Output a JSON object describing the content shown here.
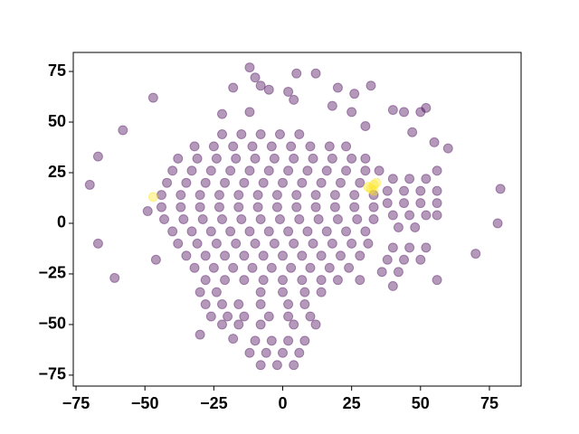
{
  "chart_data": {
    "type": "scatter",
    "xlim": [
      -76,
      86.5
    ],
    "ylim": [
      -80.4,
      84.4
    ],
    "xticks": [
      {
        "value": -75,
        "label": "−75"
      },
      {
        "value": -50,
        "label": "−50"
      },
      {
        "value": -25,
        "label": "−25"
      },
      0,
      25,
      50,
      75
    ],
    "yticks": [
      {
        "value": -75,
        "label": "−75"
      },
      {
        "value": -50,
        "label": "−50"
      },
      {
        "value": -25,
        "label": "−25"
      },
      0,
      25,
      50,
      75
    ],
    "grid": false,
    "alpha": 0.4,
    "series": [
      {
        "color": "#440154",
        "x": [
          -22,
          -15,
          -8,
          -1,
          6,
          -32,
          -25,
          -18,
          -11,
          -4,
          3,
          10,
          17,
          23,
          -38,
          -31,
          -24,
          -17,
          -10,
          -3,
          4,
          11,
          18,
          25,
          30,
          -40,
          -33,
          -26,
          -19,
          -12,
          -5,
          2,
          9,
          16,
          23,
          30,
          35,
          -42,
          -35,
          -28,
          -21,
          -14,
          -7,
          0,
          7,
          14,
          21,
          28,
          -44,
          -37,
          -30,
          -23,
          -16,
          -9,
          -2,
          5,
          12,
          19,
          26,
          33,
          -44,
          -37,
          -30,
          -23,
          -16,
          -9,
          -2,
          5,
          12,
          19,
          26,
          33,
          -43,
          -36,
          -29,
          -22,
          -15,
          -8,
          -1,
          6,
          13,
          20,
          27,
          33,
          -40,
          -33,
          -26,
          -19,
          -12,
          -5,
          2,
          9,
          16,
          23,
          30,
          -38,
          -31,
          -24,
          -17,
          -10,
          -3,
          4,
          11,
          18,
          25,
          31,
          -35,
          -28,
          -21,
          -14,
          -7,
          0,
          7,
          14,
          21,
          28,
          -32,
          -25,
          -18,
          -11,
          -4,
          3,
          10,
          17,
          24,
          -28,
          -21,
          -14,
          -7,
          0,
          7,
          14,
          20,
          28,
          -30,
          -24,
          -8,
          0,
          8,
          14,
          -28,
          -22,
          -16,
          -8,
          2,
          8,
          -26,
          -20,
          -14,
          -5,
          2,
          10,
          -22,
          -16,
          -8,
          4,
          12,
          -10,
          -4,
          2,
          8,
          -12,
          -6,
          0,
          6,
          -8,
          -2,
          4,
          40,
          46,
          52,
          38,
          44,
          50,
          56,
          38,
          44,
          50,
          56,
          40,
          46,
          52,
          56,
          42,
          48,
          40,
          46,
          52,
          38,
          44,
          50,
          36,
          42,
          -70,
          -67,
          -67,
          -61,
          -58,
          -47,
          -12,
          -10,
          -18,
          -8,
          -5,
          2,
          4,
          12,
          5,
          20,
          26,
          32,
          40,
          44,
          50,
          52,
          47,
          55,
          60,
          56,
          70,
          78,
          79,
          56,
          40,
          30,
          -49,
          -46,
          -22,
          -12,
          25,
          18,
          -30,
          -18
        ],
        "values": [
          44,
          44,
          44,
          44,
          44,
          38,
          38,
          38,
          38,
          38,
          38,
          38,
          38,
          38,
          32,
          32,
          32,
          32,
          32,
          32,
          32,
          32,
          32,
          32,
          32,
          26,
          26,
          26,
          26,
          26,
          26,
          26,
          26,
          26,
          26,
          26,
          26,
          20,
          20,
          20,
          20,
          20,
          20,
          20,
          20,
          20,
          20,
          20,
          14,
          14,
          14,
          14,
          14,
          14,
          14,
          14,
          14,
          14,
          14,
          14,
          8,
          8,
          8,
          8,
          8,
          8,
          8,
          8,
          8,
          8,
          8,
          8,
          2,
          2,
          2,
          2,
          2,
          2,
          2,
          2,
          2,
          2,
          2,
          2,
          -4,
          -4,
          -4,
          -4,
          -4,
          -4,
          -4,
          -4,
          -4,
          -4,
          -4,
          -10,
          -10,
          -10,
          -10,
          -10,
          -10,
          -10,
          -10,
          -10,
          -10,
          -10,
          -16,
          -16,
          -16,
          -16,
          -16,
          -16,
          -16,
          -16,
          -16,
          -16,
          -22,
          -22,
          -22,
          -22,
          -22,
          -22,
          -22,
          -22,
          -22,
          -28,
          -28,
          -28,
          -28,
          -28,
          -28,
          -28,
          -28,
          -28,
          -34,
          -34,
          -34,
          -34,
          -34,
          -34,
          -40,
          -40,
          -40,
          -40,
          -40,
          -40,
          -46,
          -46,
          -46,
          -46,
          -46,
          -46,
          -50,
          -50,
          -50,
          -50,
          -50,
          -58,
          -58,
          -58,
          -58,
          -64,
          -64,
          -64,
          -64,
          -70,
          -70,
          -70,
          22,
          22,
          22,
          16,
          16,
          16,
          16,
          10,
          10,
          10,
          10,
          4,
          4,
          4,
          4,
          -2,
          -2,
          -12,
          -12,
          -12,
          -18,
          -18,
          -18,
          -24,
          -24,
          19,
          33,
          -10,
          -27,
          46,
          62,
          77,
          72,
          67,
          68,
          66,
          65,
          61,
          74,
          74,
          67,
          64,
          68,
          56,
          55,
          55,
          57,
          45,
          40,
          37,
          26,
          -15,
          0,
          17,
          -28,
          -31,
          48,
          6,
          -18,
          54,
          55,
          55,
          58,
          -55,
          -57
        ]
      },
      {
        "color": "#fde725",
        "x": [
          32,
          33,
          34,
          31,
          33,
          -47
        ],
        "values": [
          17,
          19,
          20,
          18,
          16,
          13
        ]
      }
    ]
  }
}
